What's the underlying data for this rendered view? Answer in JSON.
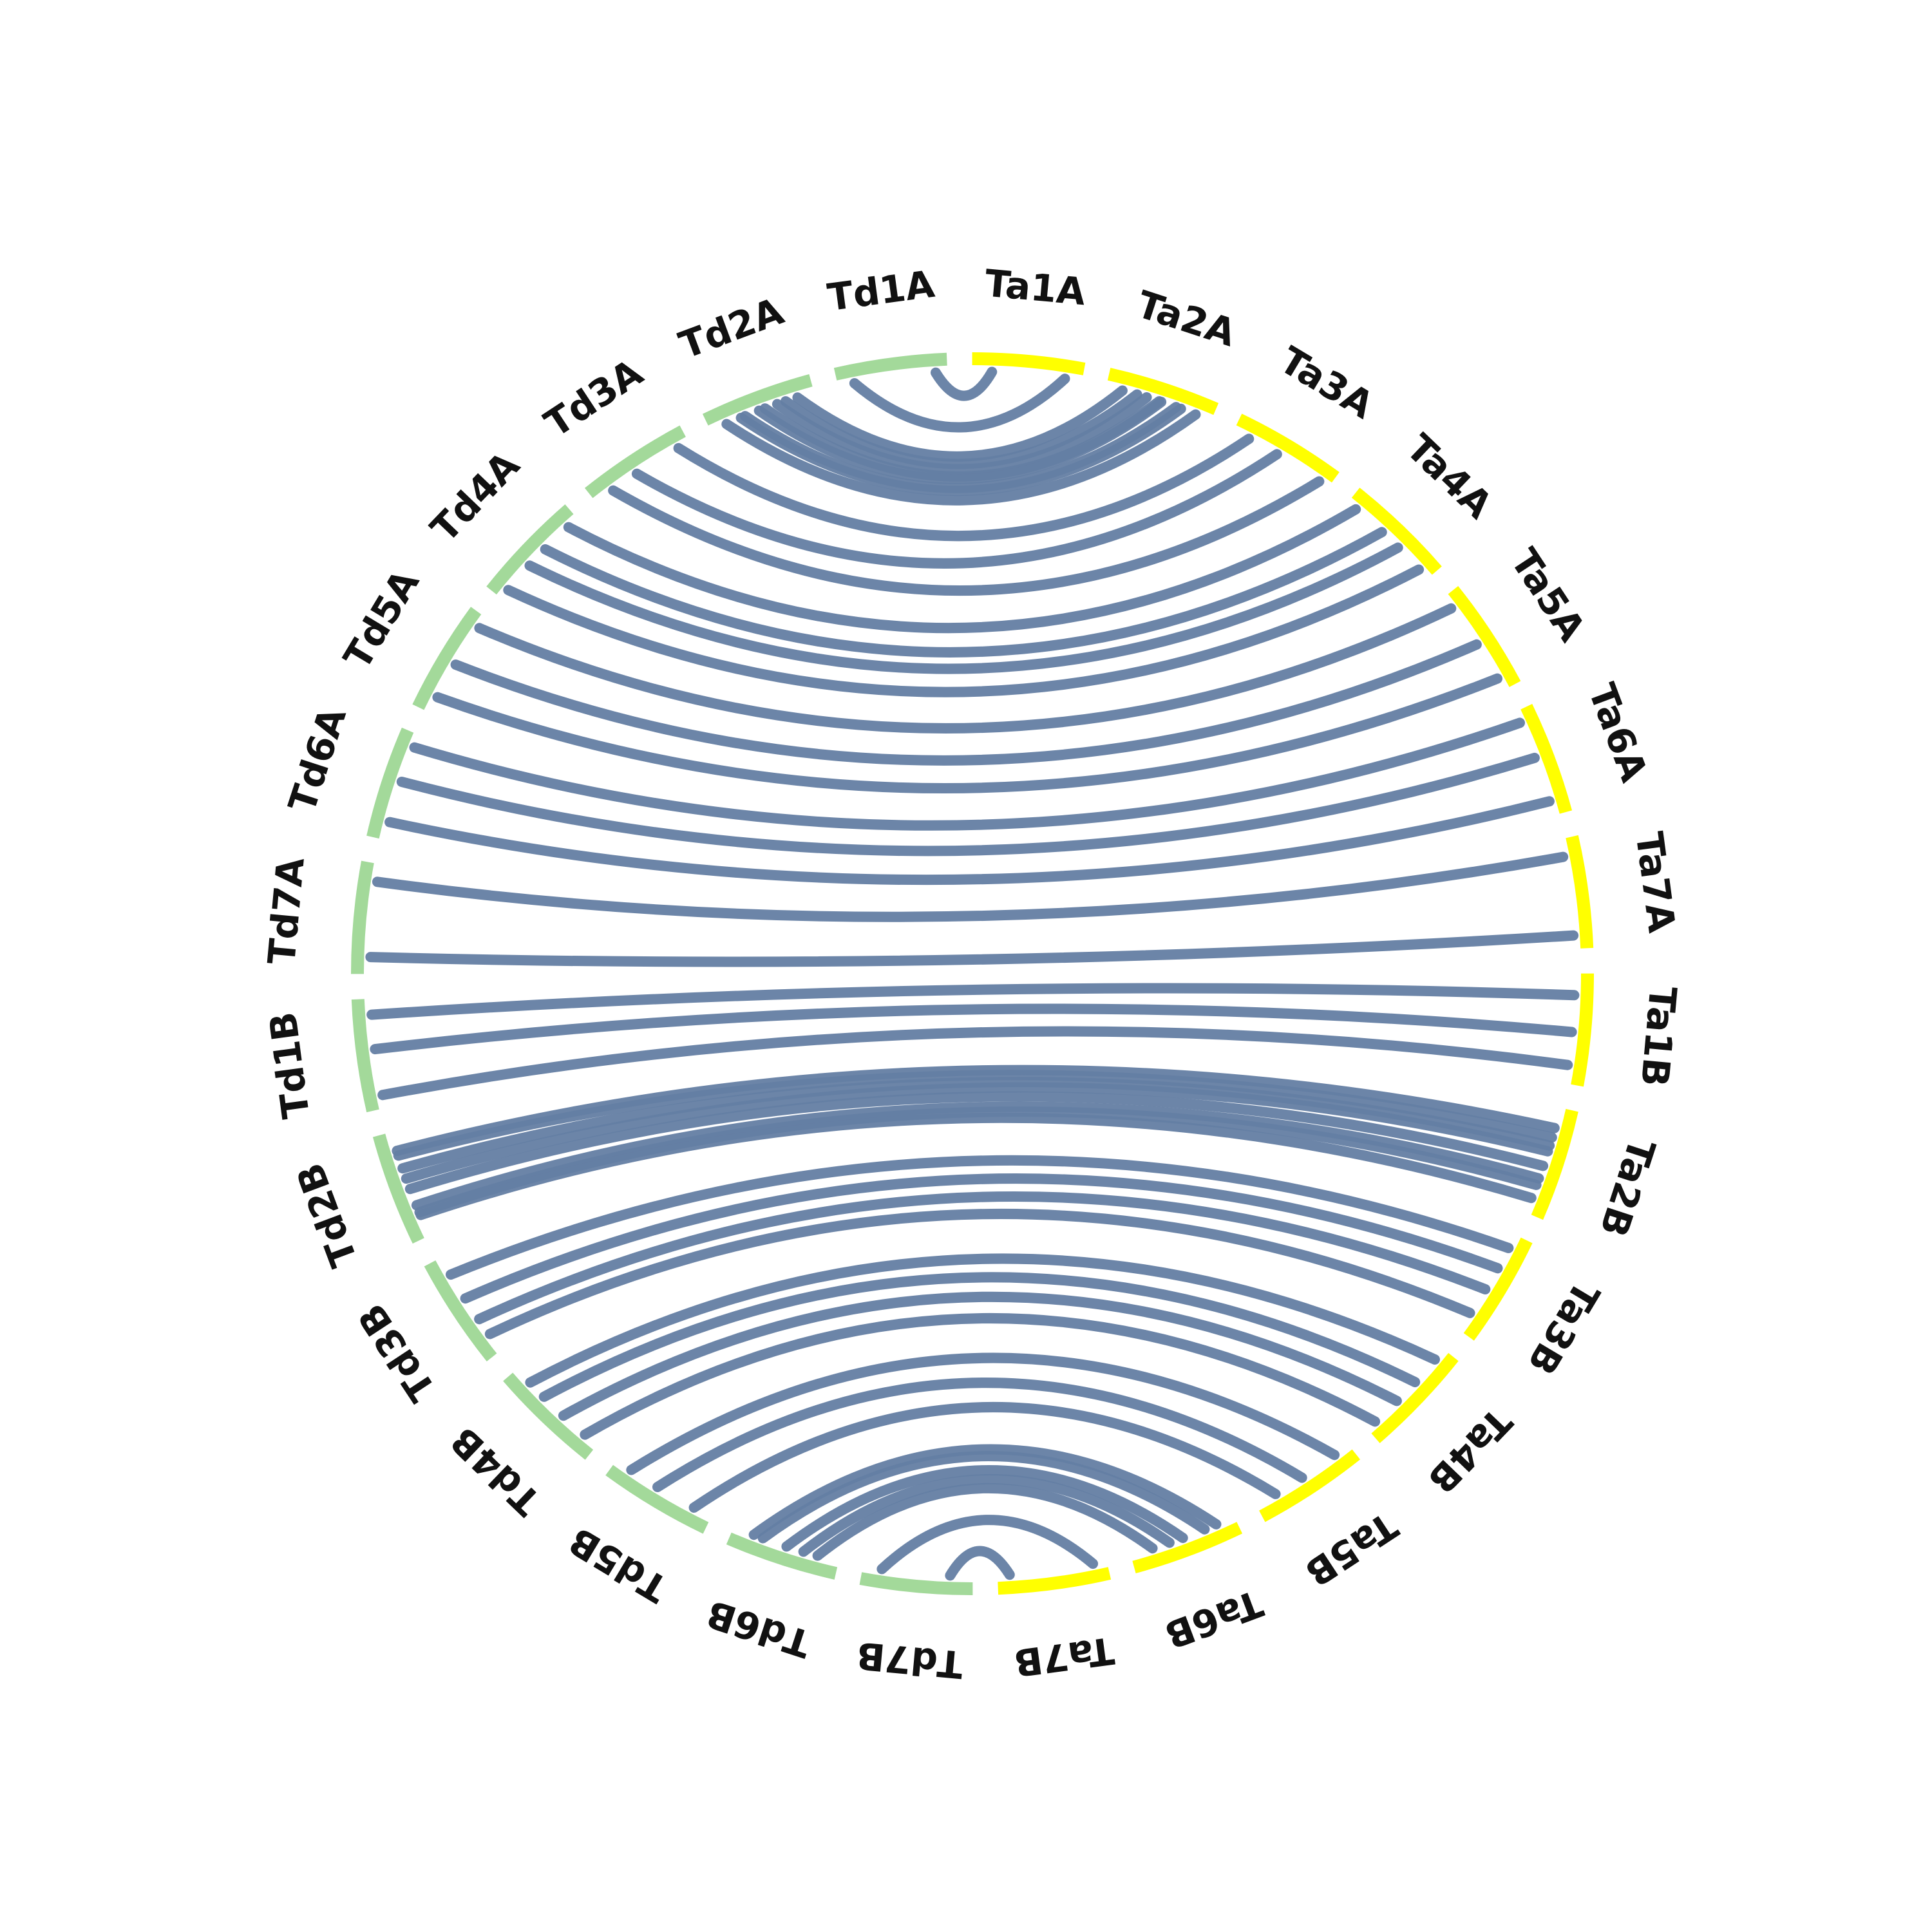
{
  "colors": {
    "td_chromosomes": "#a3d99a",
    "ta_chromosomes": "#ffff00",
    "links": "#647ea3",
    "background": "#ffffff"
  },
  "chromosomes": [
    {
      "name": "Ta1A",
      "genome": "Ta"
    },
    {
      "name": "Ta2A",
      "genome": "Ta"
    },
    {
      "name": "Ta3A",
      "genome": "Ta"
    },
    {
      "name": "Ta4A",
      "genome": "Ta"
    },
    {
      "name": "Ta5A",
      "genome": "Ta"
    },
    {
      "name": "Ta6A",
      "genome": "Ta"
    },
    {
      "name": "Ta7A",
      "genome": "Ta"
    },
    {
      "name": "Ta1B",
      "genome": "Ta"
    },
    {
      "name": "Ta2B",
      "genome": "Ta"
    },
    {
      "name": "Ta3B",
      "genome": "Ta"
    },
    {
      "name": "Ta4B",
      "genome": "Ta"
    },
    {
      "name": "Ta5B",
      "genome": "Ta"
    },
    {
      "name": "Ta6B",
      "genome": "Ta"
    },
    {
      "name": "Ta7B",
      "genome": "Ta"
    },
    {
      "name": "Td7B",
      "genome": "Td"
    },
    {
      "name": "Td6B",
      "genome": "Td"
    },
    {
      "name": "Td5B",
      "genome": "Td"
    },
    {
      "name": "Td4B",
      "genome": "Td"
    },
    {
      "name": "Td3B",
      "genome": "Td"
    },
    {
      "name": "Td2B",
      "genome": "Td"
    },
    {
      "name": "Td1B",
      "genome": "Td"
    },
    {
      "name": "Td7A",
      "genome": "Td"
    },
    {
      "name": "Td6A",
      "genome": "Td"
    },
    {
      "name": "Td5A",
      "genome": "Td"
    },
    {
      "name": "Td4A",
      "genome": "Td"
    },
    {
      "name": "Td3A",
      "genome": "Td"
    },
    {
      "name": "Td2A",
      "genome": "Td"
    },
    {
      "name": "Td1A",
      "genome": "Td"
    }
  ],
  "links": [
    {
      "from": "Td1A",
      "to": "Ta1A",
      "count": 2
    },
    {
      "from": "Td2A",
      "to": "Ta2A",
      "count": 8
    },
    {
      "from": "Td3A",
      "to": "Ta3A",
      "count": 3
    },
    {
      "from": "Td4A",
      "to": "Ta4A",
      "count": 4
    },
    {
      "from": "Td5A",
      "to": "Ta5A",
      "count": 3
    },
    {
      "from": "Td6A",
      "to": "Ta6A",
      "count": 3
    },
    {
      "from": "Td7A",
      "to": "Ta7A",
      "count": 2
    },
    {
      "from": "Td1B",
      "to": "Ta1B",
      "count": 3
    },
    {
      "from": "Td2B",
      "to": "Ta2B",
      "count": 8
    },
    {
      "from": "Td3B",
      "to": "Ta3B",
      "count": 4
    },
    {
      "from": "Td4B",
      "to": "Ta4B",
      "count": 4
    },
    {
      "from": "Td5B",
      "to": "Ta5B",
      "count": 3
    },
    {
      "from": "Td6B",
      "to": "Ta6B",
      "count": 5
    },
    {
      "from": "Td7B",
      "to": "Ta7B",
      "count": 2
    }
  ]
}
